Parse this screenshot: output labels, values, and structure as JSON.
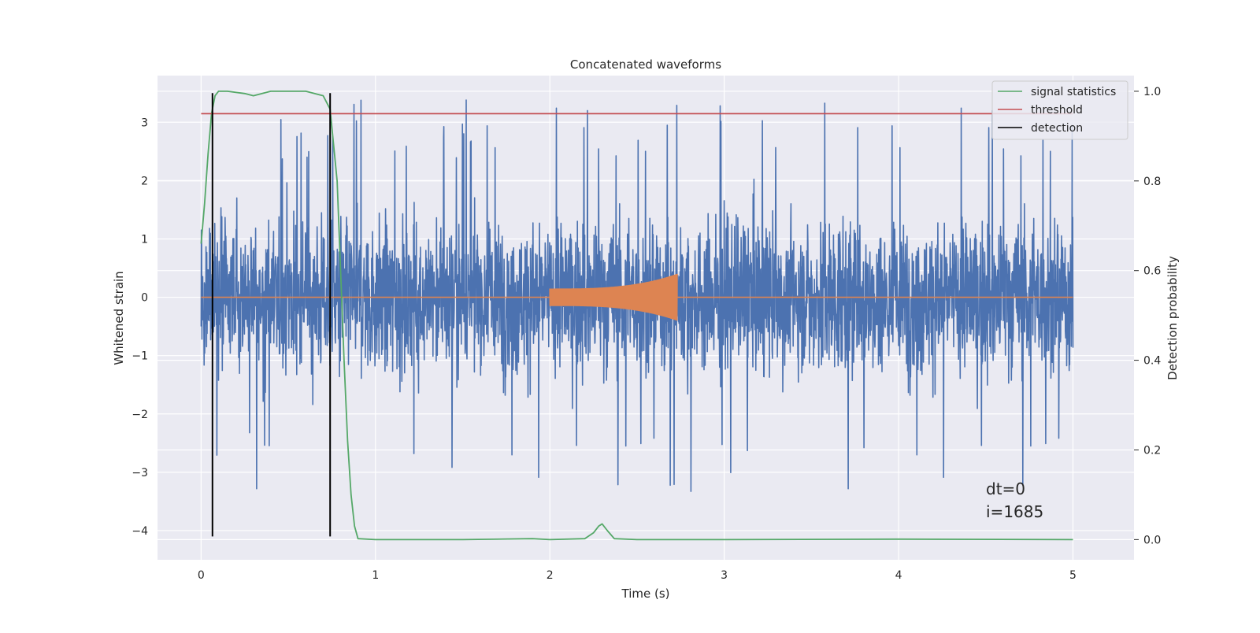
{
  "chart_data": {
    "type": "line",
    "title": "Concatenated waveforms",
    "xlabel": "Time (s)",
    "ylabel": "Whitened strain",
    "y2label": "Detection probability",
    "xlim": [
      -0.25,
      5.35
    ],
    "ylim": [
      -4.5,
      3.8
    ],
    "y2lim": [
      -0.045,
      1.035
    ],
    "xticks": [
      0,
      1,
      2,
      3,
      4,
      5
    ],
    "yticks": [
      -4,
      -3,
      -2,
      -1,
      0,
      1,
      2,
      3
    ],
    "y2ticks": [
      0.0,
      0.2,
      0.4,
      0.6,
      0.8,
      1.0
    ],
    "xtick_labels": [
      "0",
      "1",
      "2",
      "3",
      "4",
      "5"
    ],
    "ytick_labels": [
      "−4",
      "−3",
      "−2",
      "−1",
      "0",
      "1",
      "2",
      "3"
    ],
    "y2tick_labels": [
      "0.0",
      "0.2",
      "0.4",
      "0.6",
      "0.8",
      "1.0"
    ],
    "grid": true,
    "legend_position": "top-right",
    "colors": {
      "strain": "#4c72b0",
      "injection": "#dd8452",
      "signal_statistics": "#55a868",
      "threshold": "#c44e52",
      "detection": "#000000",
      "background": "#eaeaf2",
      "grid": "#ffffff"
    },
    "strain_series": {
      "x_range": [
        0,
        5
      ],
      "envelope": {
        "typical": 1.5,
        "peaks_up": 3.5,
        "peaks_down": -3.95
      }
    },
    "injection": {
      "start": 2.0,
      "end": 2.73,
      "amp_start": 0.15,
      "amp_end": 0.4
    },
    "series": [
      {
        "name": "signal statistics",
        "axis": "y2",
        "x": [
          0,
          0.02,
          0.04,
          0.06,
          0.08,
          0.1,
          0.15,
          0.25,
          0.3,
          0.35,
          0.4,
          0.6,
          0.7,
          0.74,
          0.78,
          0.8,
          0.82,
          0.84,
          0.86,
          0.88,
          0.9,
          1.0,
          1.5,
          1.9,
          2.0,
          2.2,
          2.25,
          2.28,
          2.3,
          2.33,
          2.37,
          2.5,
          3.0,
          4.0,
          5.0
        ],
        "y": [
          0.66,
          0.75,
          0.86,
          0.95,
          0.99,
          1.0,
          1.0,
          0.995,
          0.99,
          0.995,
          1.0,
          1.0,
          0.99,
          0.96,
          0.8,
          0.6,
          0.4,
          0.22,
          0.1,
          0.03,
          0.002,
          0.0,
          0.0,
          0.002,
          0.0,
          0.002,
          0.015,
          0.03,
          0.035,
          0.02,
          0.002,
          0.0,
          0.0,
          0.001,
          0.0
        ]
      },
      {
        "name": "threshold",
        "axis": "y2",
        "x": [
          0,
          5
        ],
        "y": [
          0.95,
          0.95
        ]
      },
      {
        "name": "detection",
        "axis": "y",
        "x": [
          0.065,
          0.065,
          null,
          0.74,
          0.74
        ],
        "y": [
          -4.1,
          3.5,
          null,
          -4.1,
          3.5
        ]
      }
    ],
    "annotations": [
      "dt=0",
      "i=1685"
    ]
  }
}
